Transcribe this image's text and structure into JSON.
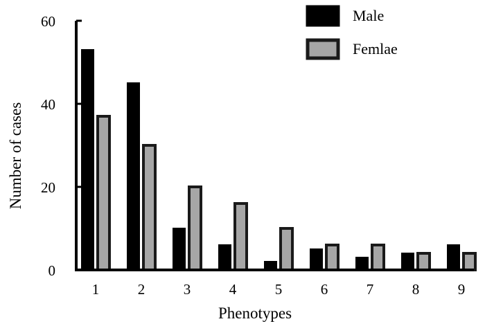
{
  "chart_data": {
    "type": "bar",
    "title": "",
    "xlabel": "Phenotypes",
    "ylabel": "Number of cases",
    "categories": [
      "1",
      "2",
      "3",
      "4",
      "5",
      "6",
      "7",
      "8",
      "9"
    ],
    "ylim": [
      0,
      60
    ],
    "yticks": [
      "0",
      "20",
      "40",
      "60"
    ],
    "legend_position": "top-right",
    "series": [
      {
        "name": "Male",
        "color": "#000000",
        "values": [
          53,
          45,
          10,
          6,
          2,
          5,
          3,
          4,
          6
        ]
      },
      {
        "name": "Femlae",
        "color": "#a6a6a6",
        "values": [
          37,
          30,
          20,
          16,
          10,
          6,
          6,
          4,
          4
        ]
      }
    ]
  }
}
